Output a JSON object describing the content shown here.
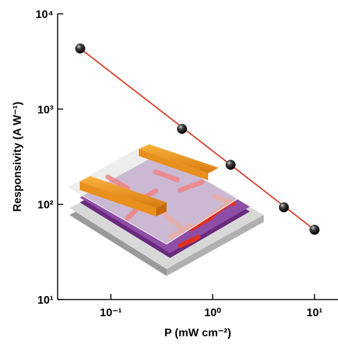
{
  "chart_data": {
    "type": "scatter",
    "xlabel": "P (mW cm⁻²)",
    "ylabel": "Responsivity (A W⁻¹)",
    "xscale": "log",
    "yscale": "log",
    "xlim": [
      0.03,
      17
    ],
    "ylim": [
      10,
      10000
    ],
    "xticks": [
      {
        "value": 0.1,
        "label": "10⁻¹"
      },
      {
        "value": 1,
        "label": "10⁰"
      },
      {
        "value": 10,
        "label": "10¹"
      }
    ],
    "yticks": [
      {
        "value": 10,
        "label": "10¹"
      },
      {
        "value": 100,
        "label": "10²"
      },
      {
        "value": 1000,
        "label": "10³"
      },
      {
        "value": 10000,
        "label": "10⁴"
      }
    ],
    "series": [
      {
        "color": "#1a1a1a",
        "x": [
          0.05,
          0.5,
          1.5,
          5,
          10
        ],
        "values": [
          4330,
          620,
          260,
          93,
          54
        ]
      },
      {
        "type": "line",
        "color": "#d4321e",
        "x": [
          0.05,
          10
        ],
        "values": [
          4330,
          54
        ]
      }
    ]
  }
}
